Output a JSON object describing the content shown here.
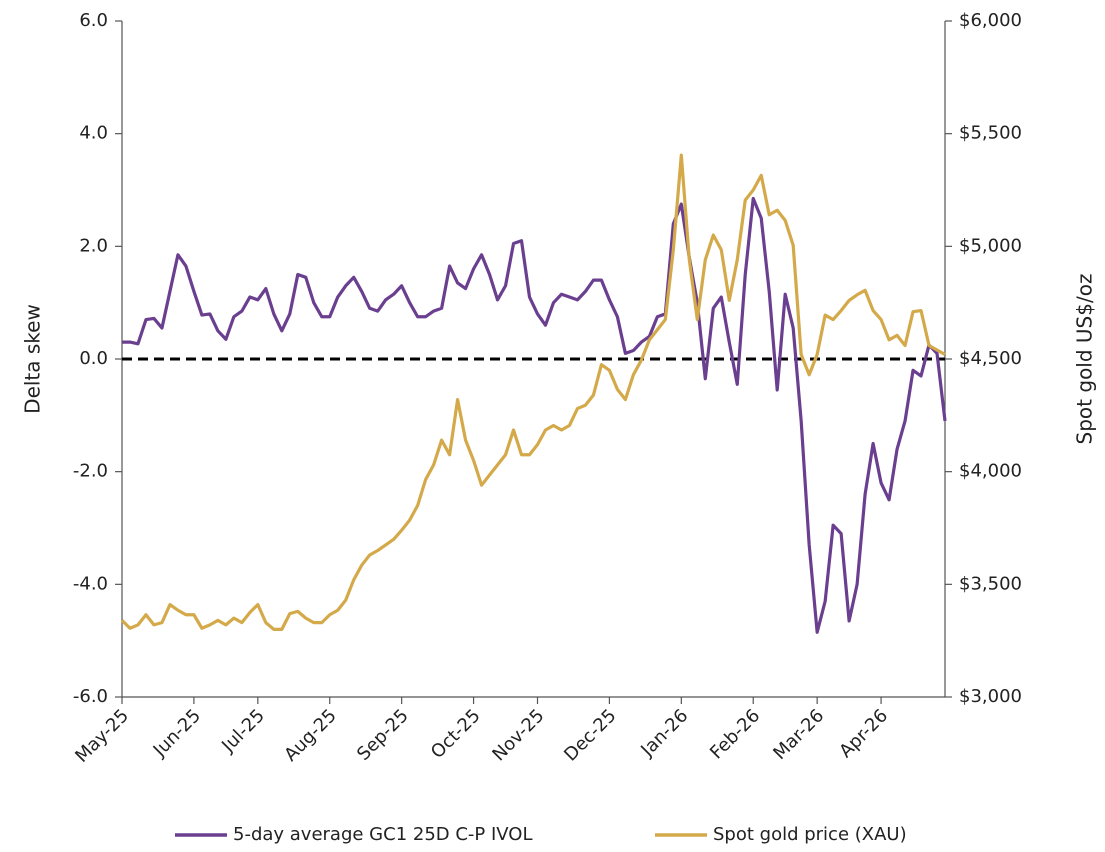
{
  "chart_data": {
    "type": "line",
    "ylabel": "Delta skew",
    "y2label": "Spot gold US$/oz",
    "categories": [
      "May-25",
      null,
      null,
      null,
      null,
      null,
      null,
      null,
      null,
      "Jun-25",
      null,
      null,
      null,
      null,
      null,
      null,
      null,
      "Jul-25",
      null,
      null,
      null,
      null,
      null,
      null,
      null,
      null,
      "Aug-25",
      null,
      null,
      null,
      null,
      null,
      null,
      null,
      null,
      "Sep-25",
      null,
      null,
      null,
      null,
      null,
      null,
      null,
      null,
      "Oct-25",
      null,
      null,
      null,
      null,
      null,
      null,
      null,
      "Nov-25",
      null,
      null,
      null,
      null,
      null,
      null,
      null,
      null,
      "Dec-25",
      null,
      null,
      null,
      null,
      null,
      null,
      null,
      null,
      "Jan-26",
      null,
      null,
      null,
      null,
      null,
      null,
      null,
      null,
      "Feb-26",
      null,
      null,
      null,
      null,
      null,
      null,
      null,
      "Mar-26",
      null,
      null,
      null,
      null,
      null,
      null,
      null,
      "Apr-26",
      null,
      null,
      null,
      null,
      null,
      null,
      null,
      null
    ],
    "series": [
      {
        "name": "5-day average GC1 25D C-P IVOL",
        "color": "#6b3f8f",
        "axis": "y",
        "values": [
          0.3,
          0.3,
          0.27,
          0.7,
          0.72,
          0.55,
          1.2,
          1.85,
          1.65,
          1.2,
          0.78,
          0.8,
          0.5,
          0.35,
          0.75,
          0.85,
          1.1,
          1.05,
          1.25,
          0.8,
          0.5,
          0.8,
          1.5,
          1.45,
          1.0,
          0.75,
          0.75,
          1.1,
          1.3,
          1.45,
          1.2,
          0.9,
          0.85,
          1.05,
          1.15,
          1.3,
          1.0,
          0.75,
          0.75,
          0.85,
          0.9,
          1.65,
          1.35,
          1.25,
          1.6,
          1.85,
          1.5,
          1.05,
          1.3,
          2.05,
          2.1,
          1.1,
          0.8,
          0.6,
          1.0,
          1.15,
          1.1,
          1.05,
          1.2,
          1.4,
          1.4,
          1.05,
          0.75,
          0.1,
          0.15,
          0.3,
          0.4,
          0.75,
          0.8,
          2.4,
          2.75,
          1.8,
          1.0,
          -0.35,
          0.9,
          1.1,
          0.3,
          -0.45,
          1.5,
          2.85,
          2.5,
          1.2,
          -0.55,
          1.15,
          0.55,
          -1.1,
          -3.3,
          -4.85,
          -4.3,
          -2.95,
          -3.1,
          -4.65,
          -4.0,
          -2.4,
          -1.5,
          -2.2,
          -2.5,
          -1.6,
          -1.1,
          -0.2,
          -0.3,
          0.25,
          0.1,
          -1.1
        ]
      },
      {
        "name": "Spot gold price (XAU)",
        "color": "#d4a94a",
        "axis": "y2",
        "values": [
          3340,
          3305,
          3320,
          3365,
          3320,
          3330,
          3410,
          3385,
          3365,
          3365,
          3305,
          3320,
          3340,
          3320,
          3350,
          3330,
          3375,
          3410,
          3330,
          3300,
          3300,
          3370,
          3380,
          3350,
          3330,
          3330,
          3365,
          3385,
          3430,
          3520,
          3585,
          3630,
          3650,
          3675,
          3700,
          3740,
          3785,
          3850,
          3965,
          4030,
          4140,
          4075,
          4320,
          4140,
          4050,
          3940,
          3985,
          4030,
          4075,
          4185,
          4075,
          4075,
          4120,
          4185,
          4205,
          4185,
          4205,
          4280,
          4295,
          4340,
          4475,
          4450,
          4365,
          4320,
          4430,
          4495,
          4585,
          4630,
          4675,
          4985,
          5405,
          4940,
          4675,
          4940,
          5050,
          4985,
          4760,
          4940,
          5205,
          5250,
          5315,
          5140,
          5160,
          5115,
          5005,
          4520,
          4430,
          4520,
          4695,
          4675,
          4715,
          4760,
          4785,
          4805,
          4715,
          4675,
          4585,
          4605,
          4560,
          4710,
          4715,
          4560,
          4540,
          4520
        ]
      }
    ],
    "ylim": [
      -6,
      6
    ],
    "yticks": [
      {
        "value": -6,
        "label": "-6.0"
      },
      {
        "value": -4,
        "label": "-4.0"
      },
      {
        "value": -2,
        "label": "-2.0"
      },
      {
        "value": 0,
        "label": "0.0"
      },
      {
        "value": 2,
        "label": "2.0"
      },
      {
        "value": 4,
        "label": "4.0"
      },
      {
        "value": 6,
        "label": "6.0"
      }
    ],
    "y2lim": [
      3000,
      6000
    ],
    "y2ticks": [
      {
        "value": 3000,
        "label": "$3,000"
      },
      {
        "value": 3500,
        "label": "$3,500"
      },
      {
        "value": 4000,
        "label": "$4,000"
      },
      {
        "value": 4500,
        "label": "$4,500"
      },
      {
        "value": 5000,
        "label": "$5,000"
      },
      {
        "value": 5500,
        "label": "$5,500"
      },
      {
        "value": 6000,
        "label": "$6,000"
      }
    ],
    "reference_line": {
      "value": 0,
      "style": "dashed",
      "color": "#000000"
    },
    "grid": false,
    "legend": "bottom"
  }
}
